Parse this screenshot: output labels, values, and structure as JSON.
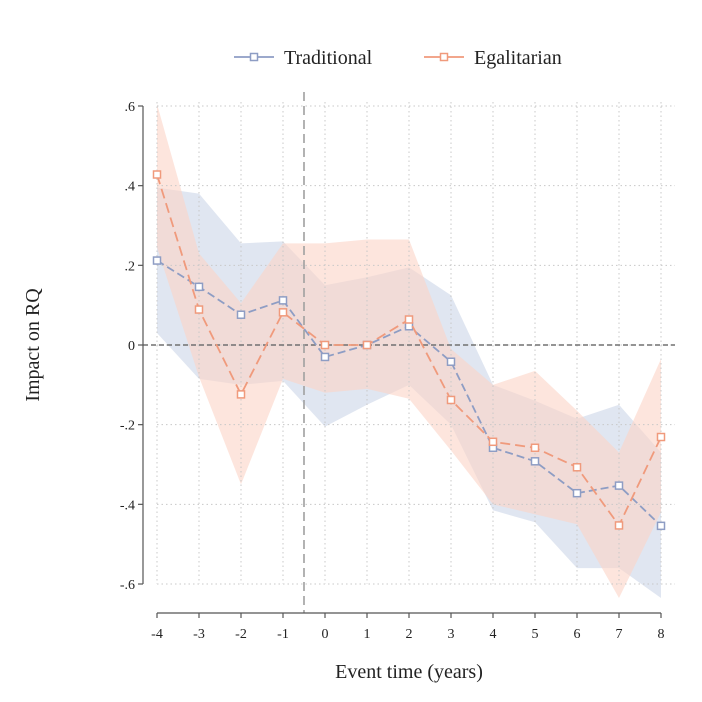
{
  "chart_data": {
    "type": "line",
    "title": "",
    "xlabel": "Event time (years)",
    "ylabel": "Impact on RQ",
    "x": [
      -4,
      -3,
      -2,
      -1,
      0,
      1,
      2,
      3,
      4,
      5,
      6,
      7,
      8
    ],
    "xlim": [
      -4,
      8
    ],
    "ylim": [
      -0.6,
      0.6
    ],
    "xticks": [
      {
        "value": -4,
        "label": "-4"
      },
      {
        "value": -3,
        "label": "-3"
      },
      {
        "value": -2,
        "label": "-2"
      },
      {
        "value": -1,
        "label": "-1"
      },
      {
        "value": 0,
        "label": "0"
      },
      {
        "value": 1,
        "label": "1"
      },
      {
        "value": 2,
        "label": "2"
      },
      {
        "value": 3,
        "label": "3"
      },
      {
        "value": 4,
        "label": "4"
      },
      {
        "value": 5,
        "label": "5"
      },
      {
        "value": 6,
        "label": "6"
      },
      {
        "value": 7,
        "label": "7"
      },
      {
        "value": 8,
        "label": "8"
      }
    ],
    "yticks": [
      {
        "value": 0.6,
        "label": ".6"
      },
      {
        "value": 0.4,
        "label": ".4"
      },
      {
        "value": 0.2,
        "label": ".2"
      },
      {
        "value": 0,
        "label": "0"
      },
      {
        "value": -0.2,
        "label": "-.2"
      },
      {
        "value": -0.4,
        "label": "-.4"
      },
      {
        "value": -0.6,
        "label": "-.6"
      }
    ],
    "grid": true,
    "reference_lines": {
      "vertical_x": -0.5,
      "horizontal_y": 0
    },
    "legend_position": "top",
    "series": [
      {
        "name": "Traditional",
        "color": "#8E9DC4",
        "band_color": "#D5DDEC",
        "values": [
          0.212,
          0.146,
          0.076,
          0.112,
          -0.03,
          0.0,
          0.047,
          -0.042,
          -0.258,
          -0.292,
          -0.372,
          -0.353,
          -0.454
        ],
        "lower": [
          0.03,
          -0.085,
          -0.1,
          -0.09,
          -0.205,
          -0.15,
          -0.1,
          -0.2,
          -0.415,
          -0.445,
          -0.56,
          -0.56,
          -0.635
        ],
        "upper": [
          0.395,
          0.38,
          0.255,
          0.26,
          0.15,
          0.17,
          0.195,
          0.125,
          -0.1,
          -0.14,
          -0.185,
          -0.15,
          -0.27
        ]
      },
      {
        "name": "Egalitarian",
        "color": "#F09A7C",
        "band_color": "#FBD3C6",
        "values": [
          0.428,
          0.089,
          -0.124,
          0.082,
          0.0,
          0.0,
          0.064,
          -0.138,
          -0.243,
          -0.258,
          -0.307,
          -0.453,
          -0.231
        ],
        "lower": [
          0.245,
          -0.08,
          -0.35,
          -0.085,
          -0.12,
          -0.11,
          -0.135,
          -0.265,
          -0.4,
          -0.425,
          -0.45,
          -0.635,
          -0.42
        ],
        "upper": [
          0.605,
          0.23,
          0.105,
          0.255,
          0.255,
          0.265,
          0.265,
          -0.01,
          -0.1,
          -0.065,
          -0.165,
          -0.27,
          -0.035
        ]
      }
    ]
  }
}
